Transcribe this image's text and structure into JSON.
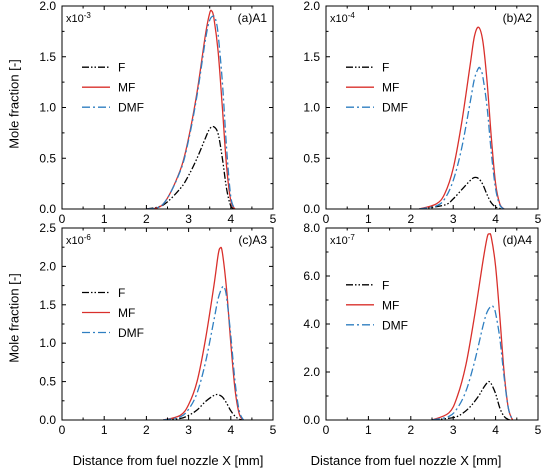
{
  "figure": {
    "ylabel": "Mole fraction [-]",
    "xlabel": "Distance from fuel nozzle X [mm]"
  },
  "legend_order": [
    "F",
    "MF",
    "DMF"
  ],
  "series_style": {
    "F": {
      "color": "#000000",
      "dash": "7,2,1.5,2,1.5,2"
    },
    "MF": {
      "color": "#d9302c",
      "dash": ""
    },
    "DMF": {
      "color": "#2f7fc1",
      "dash": "8,3,2,3"
    }
  },
  "chart_data": [
    {
      "type": "line",
      "panel_label": "(a)A1",
      "multiplier": "x10",
      "multiplier_exp": "-3",
      "xlim": [
        0,
        5
      ],
      "ylim": [
        0,
        2.0
      ],
      "xticks": [
        "0",
        "1",
        "2",
        "3",
        "4",
        "5"
      ],
      "yticks": [
        "0.0",
        "0.5",
        "1.0",
        "1.5",
        "2.0"
      ],
      "xlabel": "",
      "ylabel": "Mole fraction [-]",
      "legend_position": "upper-left",
      "series": [
        {
          "name": "F",
          "x": [
            2.0,
            2.4,
            2.8,
            3.0,
            3.2,
            3.4,
            3.5,
            3.6,
            3.7,
            3.8,
            3.9,
            4.0,
            4.1
          ],
          "y": [
            0,
            0.04,
            0.2,
            0.33,
            0.5,
            0.7,
            0.79,
            0.81,
            0.74,
            0.5,
            0.2,
            0.03,
            0
          ]
        },
        {
          "name": "MF",
          "x": [
            2.0,
            2.4,
            2.8,
            3.0,
            3.2,
            3.4,
            3.5,
            3.55,
            3.6,
            3.7,
            3.8,
            3.9,
            4.0,
            4.1
          ],
          "y": [
            0,
            0.05,
            0.38,
            0.7,
            1.15,
            1.72,
            1.93,
            1.95,
            1.88,
            1.55,
            1.0,
            0.42,
            0.08,
            0
          ]
        },
        {
          "name": "DMF",
          "x": [
            2.0,
            2.4,
            2.8,
            3.0,
            3.2,
            3.4,
            3.5,
            3.6,
            3.65,
            3.7,
            3.8,
            3.9,
            4.0,
            4.1
          ],
          "y": [
            0,
            0.05,
            0.37,
            0.68,
            1.12,
            1.67,
            1.86,
            1.9,
            1.85,
            1.72,
            1.25,
            0.6,
            0.12,
            0
          ]
        }
      ]
    },
    {
      "type": "line",
      "panel_label": "(b)A2",
      "multiplier": "x10",
      "multiplier_exp": "-4",
      "xlim": [
        0,
        5
      ],
      "ylim": [
        0,
        2.0
      ],
      "xticks": [
        "0",
        "1",
        "2",
        "3",
        "4",
        "5"
      ],
      "yticks": [
        "0.0",
        "0.5",
        "1.0",
        "1.5",
        "2.0"
      ],
      "xlabel": "",
      "ylabel": "",
      "legend_position": "upper-left",
      "series": [
        {
          "name": "F",
          "x": [
            2.2,
            2.8,
            3.0,
            3.2,
            3.4,
            3.5,
            3.6,
            3.7,
            3.8,
            3.9,
            4.0,
            4.1,
            4.2
          ],
          "y": [
            0,
            0.04,
            0.1,
            0.19,
            0.28,
            0.31,
            0.3,
            0.24,
            0.14,
            0.06,
            0.02,
            0.005,
            0
          ]
        },
        {
          "name": "MF",
          "x": [
            2.2,
            2.6,
            2.8,
            3.0,
            3.2,
            3.4,
            3.5,
            3.6,
            3.7,
            3.8,
            3.9,
            4.0,
            4.1,
            4.2
          ],
          "y": [
            0,
            0.05,
            0.15,
            0.4,
            0.85,
            1.42,
            1.7,
            1.79,
            1.65,
            1.25,
            0.7,
            0.25,
            0.05,
            0
          ]
        },
        {
          "name": "DMF",
          "x": [
            2.2,
            2.6,
            2.8,
            3.0,
            3.2,
            3.4,
            3.5,
            3.6,
            3.65,
            3.7,
            3.8,
            3.9,
            4.0,
            4.1,
            4.2
          ],
          "y": [
            0,
            0.03,
            0.1,
            0.28,
            0.6,
            1.05,
            1.28,
            1.39,
            1.37,
            1.3,
            1.0,
            0.55,
            0.2,
            0.04,
            0
          ]
        }
      ]
    },
    {
      "type": "line",
      "panel_label": "(c)A3",
      "multiplier": "x10",
      "multiplier_exp": "-6",
      "xlim": [
        0,
        5
      ],
      "ylim": [
        0,
        2.5
      ],
      "xticks": [
        "0",
        "1",
        "2",
        "3",
        "4",
        "5"
      ],
      "yticks": [
        "0.0",
        "0.5",
        "1.0",
        "1.5",
        "2.0",
        "2.5"
      ],
      "xlabel": "Distance from fuel nozzle X [mm]",
      "ylabel": "Mole fraction [-]",
      "legend_position": "middle-left",
      "series": [
        {
          "name": "F",
          "x": [
            2.4,
            2.8,
            3.0,
            3.2,
            3.4,
            3.6,
            3.7,
            3.8,
            3.9,
            4.0,
            4.1,
            4.2,
            4.3
          ],
          "y": [
            0,
            0.02,
            0.06,
            0.13,
            0.24,
            0.32,
            0.33,
            0.3,
            0.22,
            0.12,
            0.05,
            0.01,
            0
          ]
        },
        {
          "name": "MF",
          "x": [
            2.4,
            2.8,
            3.0,
            3.2,
            3.4,
            3.6,
            3.7,
            3.75,
            3.8,
            3.9,
            4.0,
            4.1,
            4.2,
            4.3
          ],
          "y": [
            0,
            0.06,
            0.2,
            0.5,
            1.05,
            1.75,
            2.15,
            2.24,
            2.18,
            1.7,
            1.0,
            0.4,
            0.08,
            0
          ]
        },
        {
          "name": "DMF",
          "x": [
            2.4,
            2.8,
            3.0,
            3.2,
            3.4,
            3.6,
            3.7,
            3.8,
            3.85,
            3.9,
            4.0,
            4.1,
            4.2,
            4.3
          ],
          "y": [
            0,
            0.04,
            0.14,
            0.35,
            0.75,
            1.3,
            1.58,
            1.73,
            1.72,
            1.6,
            1.1,
            0.5,
            0.12,
            0
          ]
        }
      ]
    },
    {
      "type": "line",
      "panel_label": "(d)A4",
      "multiplier": "x10",
      "multiplier_exp": "-7",
      "xlim": [
        0,
        5
      ],
      "ylim": [
        0,
        8.0
      ],
      "xticks": [
        "0",
        "1",
        "2",
        "3",
        "4",
        "5"
      ],
      "yticks": [
        "0.0",
        "2.0",
        "4.0",
        "6.0",
        "8.0"
      ],
      "xlabel": "Distance from fuel nozzle X [mm]",
      "ylabel": "",
      "legend_position": "upper-left",
      "series": [
        {
          "name": "F",
          "x": [
            2.5,
            3.0,
            3.2,
            3.4,
            3.6,
            3.7,
            3.8,
            3.85,
            3.9,
            4.0,
            4.1,
            4.2,
            4.3,
            4.4
          ],
          "y": [
            0,
            0.1,
            0.25,
            0.55,
            1.0,
            1.3,
            1.55,
            1.6,
            1.5,
            1.1,
            0.5,
            0.15,
            0.02,
            0
          ]
        },
        {
          "name": "MF",
          "x": [
            2.5,
            2.9,
            3.1,
            3.3,
            3.5,
            3.7,
            3.8,
            3.85,
            3.9,
            4.0,
            4.1,
            4.2,
            4.3,
            4.4
          ],
          "y": [
            0,
            0.3,
            1.0,
            2.3,
            4.3,
            6.6,
            7.6,
            7.75,
            7.6,
            6.4,
            4.3,
            2.0,
            0.5,
            0
          ]
        },
        {
          "name": "DMF",
          "x": [
            2.5,
            2.9,
            3.1,
            3.3,
            3.5,
            3.7,
            3.8,
            3.9,
            3.95,
            4.0,
            4.1,
            4.2,
            4.3,
            4.4
          ],
          "y": [
            0,
            0.15,
            0.5,
            1.2,
            2.4,
            3.9,
            4.5,
            4.75,
            4.7,
            4.45,
            3.4,
            1.8,
            0.5,
            0
          ]
        }
      ]
    }
  ]
}
